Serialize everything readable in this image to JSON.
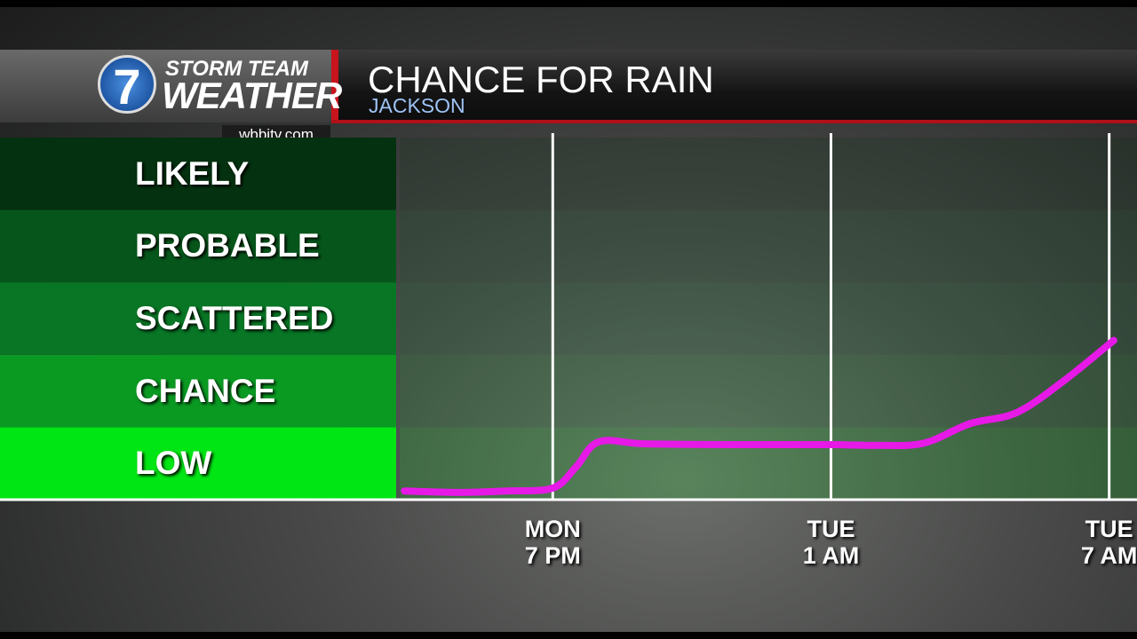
{
  "header": {
    "logo_number": "7",
    "brand_line1": "STORM TEAM",
    "brand_line2": "WEATHER",
    "website": "wbbjtv.com"
  },
  "chart_data": {
    "type": "line",
    "title": "CHANCE FOR RAIN",
    "subtitle": "JACKSON",
    "y_levels": [
      {
        "label": "LOW",
        "color": "#00e614"
      },
      {
        "label": "CHANCE",
        "color": "#0a9a22"
      },
      {
        "label": "SCATTERED",
        "color": "#087625"
      },
      {
        "label": "PROBABLE",
        "color": "#06561b"
      },
      {
        "label": "LIKELY",
        "color": "#04310f"
      }
    ],
    "ylim": [
      0,
      5
    ],
    "xlim": [
      -3.3,
      12.6
    ],
    "xticks": [
      {
        "value": 0,
        "label": "MON\n7 PM"
      },
      {
        "value": 6,
        "label": "TUE\n1 AM"
      },
      {
        "value": 12,
        "label": "TUE\n7 AM"
      }
    ],
    "x": [
      -3.2,
      -2,
      -1,
      0,
      0.5,
      1,
      2,
      4,
      6,
      7,
      8,
      9,
      10,
      11,
      12.1
    ],
    "values": [
      0.12,
      0.1,
      0.12,
      0.16,
      0.45,
      0.8,
      0.77,
      0.76,
      0.76,
      0.75,
      0.78,
      1.05,
      1.2,
      1.63,
      2.2
    ],
    "color": "#e619e6"
  }
}
